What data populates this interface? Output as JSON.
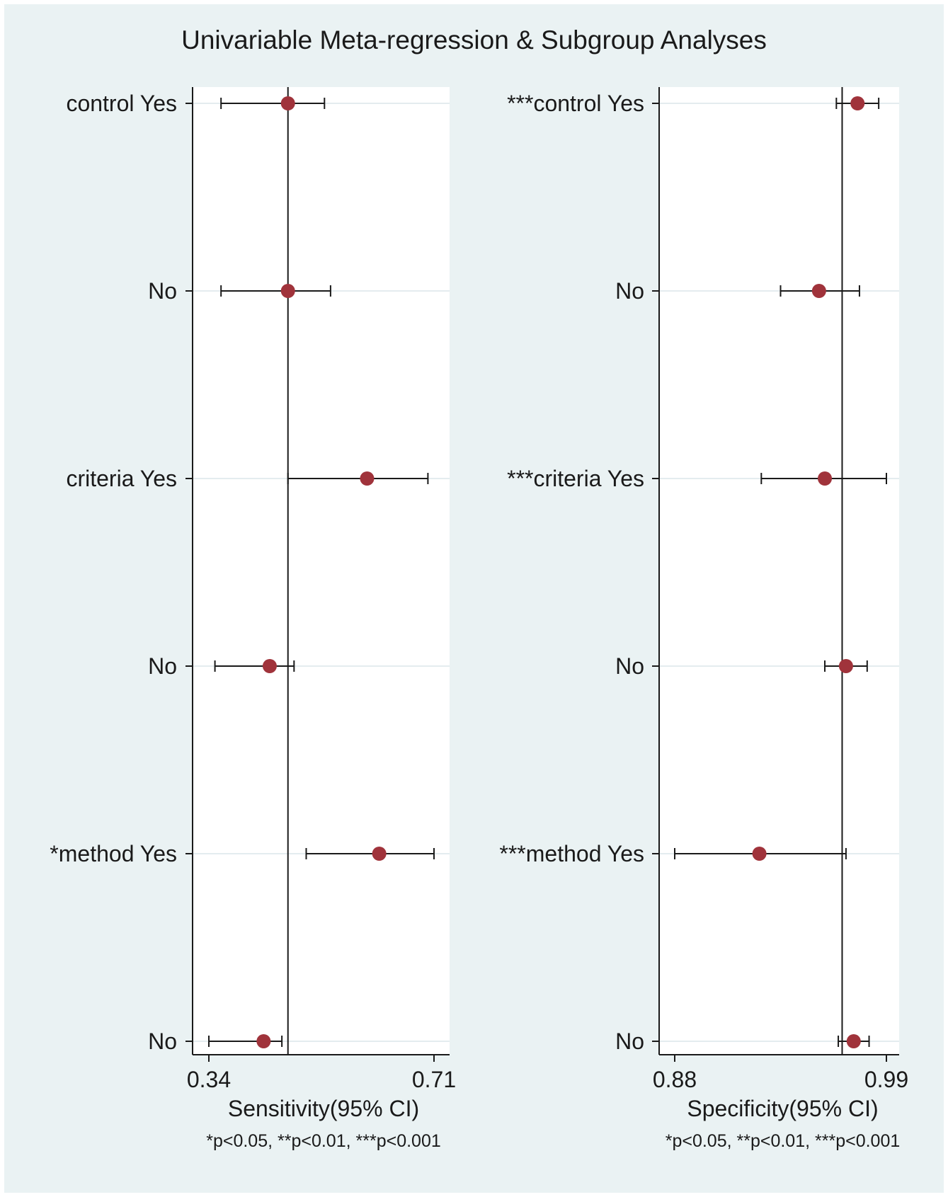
{
  "title": "Univariable Meta-regression & Subgroup Analyses",
  "colors": {
    "background": "#eaf2f3",
    "plot_region": "#ffffff",
    "gridline": "#e4ecef",
    "marker": "#a0333b",
    "line": "#1a1a1a"
  },
  "chart_data": [
    {
      "type": "forest",
      "xlabel": "Sensitivity(95% CI)",
      "note": "*p<0.05, **p<0.01, ***p<0.001",
      "xlim": [
        0.34,
        0.71
      ],
      "ticks": [
        0.34,
        0.71
      ],
      "tick_labels": [
        "0.34",
        "0.71"
      ],
      "reference_line": 0.47,
      "rows": [
        {
          "label": "control Yes",
          "estimate": 0.47,
          "lower": 0.36,
          "upper": 0.53
        },
        {
          "label": "No",
          "estimate": 0.47,
          "lower": 0.36,
          "upper": 0.54
        },
        {
          "label": "criteria Yes",
          "estimate": 0.6,
          "lower": 0.47,
          "upper": 0.7
        },
        {
          "label": "No",
          "estimate": 0.44,
          "lower": 0.35,
          "upper": 0.48
        },
        {
          "label": "*method Yes",
          "estimate": 0.62,
          "lower": 0.5,
          "upper": 0.71
        },
        {
          "label": "No",
          "estimate": 0.43,
          "lower": 0.34,
          "upper": 0.46
        }
      ]
    },
    {
      "type": "forest",
      "xlabel": "Specificity(95% CI)",
      "note": "*p<0.05, **p<0.01, ***p<0.001",
      "xlim": [
        0.88,
        0.99
      ],
      "ticks": [
        0.88,
        0.99
      ],
      "tick_labels": [
        "0.88",
        "0.99"
      ],
      "reference_line": 0.967,
      "rows": [
        {
          "label": "***control Yes",
          "estimate": 0.975,
          "lower": 0.964,
          "upper": 0.986
        },
        {
          "label": "No",
          "estimate": 0.955,
          "lower": 0.935,
          "upper": 0.976
        },
        {
          "label": "***criteria Yes",
          "estimate": 0.958,
          "lower": 0.925,
          "upper": 0.99
        },
        {
          "label": "No",
          "estimate": 0.969,
          "lower": 0.958,
          "upper": 0.98
        },
        {
          "label": "***method Yes",
          "estimate": 0.924,
          "lower": 0.88,
          "upper": 0.969
        },
        {
          "label": "No",
          "estimate": 0.973,
          "lower": 0.965,
          "upper": 0.981
        }
      ]
    }
  ]
}
